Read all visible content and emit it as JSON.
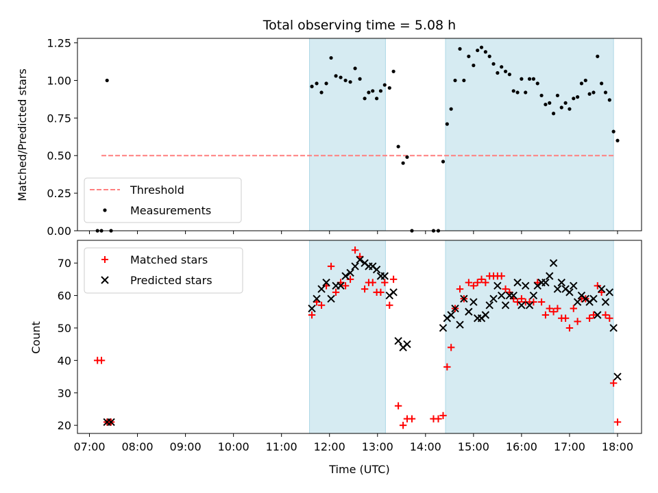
{
  "chart_data": [
    {
      "type": "scatter",
      "panel": "top",
      "title": "Total observing time = 5.08 h",
      "ylabel": "Matched/Predicted stars",
      "xlabel": "",
      "xlim": [
        "06:45",
        "18:30"
      ],
      "ylim": [
        0,
        1.28
      ],
      "yticks": [
        {
          "value": 0.0,
          "label": "0.00"
        },
        {
          "value": 0.25,
          "label": "0.25"
        },
        {
          "value": 0.5,
          "label": "0.50"
        },
        {
          "value": 0.75,
          "label": "0.75"
        },
        {
          "value": 1.0,
          "label": "1.00"
        },
        {
          "value": 1.25,
          "label": "1.25"
        }
      ],
      "observing_intervals": [
        [
          "11:35",
          "13:10"
        ],
        [
          "14:25",
          "17:55"
        ]
      ],
      "threshold": {
        "name": "Threshold",
        "y": 0.5,
        "x_range": [
          "07:15",
          "17:55"
        ],
        "color": "#ff7f7f"
      },
      "legend": {
        "position": "lower left",
        "entries": [
          "Threshold",
          "Measurements"
        ]
      },
      "series": [
        {
          "name": "Measurements",
          "marker": "dot",
          "color": "#000000",
          "points": [
            [
              "07:10",
              0.0
            ],
            [
              "07:15",
              0.0
            ],
            [
              "07:22",
              1.0
            ],
            [
              "07:27",
              0.0
            ],
            [
              "11:38",
              0.96
            ],
            [
              "11:44",
              0.98
            ],
            [
              "11:50",
              0.92
            ],
            [
              "11:56",
              0.98
            ],
            [
              "12:02",
              1.15
            ],
            [
              "12:08",
              1.03
            ],
            [
              "12:14",
              1.02
            ],
            [
              "12:20",
              1.0
            ],
            [
              "12:26",
              0.99
            ],
            [
              "12:32",
              1.08
            ],
            [
              "12:38",
              1.01
            ],
            [
              "12:44",
              0.88
            ],
            [
              "12:49",
              0.92
            ],
            [
              "12:54",
              0.93
            ],
            [
              "12:59",
              0.88
            ],
            [
              "13:04",
              0.93
            ],
            [
              "13:09",
              0.97
            ],
            [
              "13:15",
              0.95
            ],
            [
              "13:20",
              1.06
            ],
            [
              "13:26",
              0.56
            ],
            [
              "13:32",
              0.45
            ],
            [
              "13:37",
              0.49
            ],
            [
              "13:43",
              0.0
            ],
            [
              "14:10",
              0.0
            ],
            [
              "14:16",
              0.0
            ],
            [
              "14:22",
              0.46
            ],
            [
              "14:27",
              0.71
            ],
            [
              "14:32",
              0.81
            ],
            [
              "14:37",
              1.0
            ],
            [
              "14:43",
              1.21
            ],
            [
              "14:48",
              1.0
            ],
            [
              "14:54",
              1.16
            ],
            [
              "15:00",
              1.1
            ],
            [
              "15:05",
              1.2
            ],
            [
              "15:10",
              1.22
            ],
            [
              "15:15",
              1.19
            ],
            [
              "15:20",
              1.16
            ],
            [
              "15:25",
              1.11
            ],
            [
              "15:30",
              1.05
            ],
            [
              "15:35",
              1.09
            ],
            [
              "15:40",
              1.06
            ],
            [
              "15:45",
              1.04
            ],
            [
              "15:50",
              0.93
            ],
            [
              "15:55",
              0.92
            ],
            [
              "16:00",
              1.01
            ],
            [
              "16:05",
              0.92
            ],
            [
              "16:10",
              1.01
            ],
            [
              "16:15",
              1.01
            ],
            [
              "16:20",
              0.98
            ],
            [
              "16:25",
              0.9
            ],
            [
              "16:30",
              0.84
            ],
            [
              "16:35",
              0.85
            ],
            [
              "16:40",
              0.78
            ],
            [
              "16:45",
              0.9
            ],
            [
              "16:50",
              0.82
            ],
            [
              "16:55",
              0.85
            ],
            [
              "17:00",
              0.81
            ],
            [
              "17:05",
              0.88
            ],
            [
              "17:10",
              0.89
            ],
            [
              "17:15",
              0.98
            ],
            [
              "17:20",
              1.0
            ],
            [
              "17:25",
              0.91
            ],
            [
              "17:30",
              0.92
            ],
            [
              "17:35",
              1.16
            ],
            [
              "17:40",
              0.98
            ],
            [
              "17:45",
              0.92
            ],
            [
              "17:50",
              0.87
            ],
            [
              "17:55",
              0.66
            ],
            [
              "18:00",
              0.6
            ]
          ]
        }
      ]
    },
    {
      "type": "scatter",
      "panel": "bottom",
      "title": "",
      "ylabel": "Count",
      "xlabel": "Time (UTC)",
      "xlim": [
        "06:45",
        "18:30"
      ],
      "ylim": [
        17.5,
        77
      ],
      "yticks": [
        {
          "value": 20,
          "label": "20"
        },
        {
          "value": 30,
          "label": "30"
        },
        {
          "value": 40,
          "label": "40"
        },
        {
          "value": 50,
          "label": "50"
        },
        {
          "value": 60,
          "label": "60"
        },
        {
          "value": 70,
          "label": "70"
        }
      ],
      "xticks": [
        {
          "value": "07:00",
          "label": "07:00"
        },
        {
          "value": "08:00",
          "label": "08:00"
        },
        {
          "value": "09:00",
          "label": "09:00"
        },
        {
          "value": "10:00",
          "label": "10:00"
        },
        {
          "value": "11:00",
          "label": "11:00"
        },
        {
          "value": "12:00",
          "label": "12:00"
        },
        {
          "value": "13:00",
          "label": "13:00"
        },
        {
          "value": "14:00",
          "label": "14:00"
        },
        {
          "value": "15:00",
          "label": "15:00"
        },
        {
          "value": "16:00",
          "label": "16:00"
        },
        {
          "value": "17:00",
          "label": "17:00"
        },
        {
          "value": "18:00",
          "label": "18:00"
        }
      ],
      "observing_intervals": [
        [
          "11:35",
          "13:10"
        ],
        [
          "14:25",
          "17:55"
        ]
      ],
      "legend": {
        "position": "upper left",
        "entries": [
          "Matched stars",
          "Predicted stars"
        ]
      },
      "series": [
        {
          "name": "Matched stars",
          "marker": "plus",
          "color": "#ff0000",
          "points": [
            [
              "07:10",
              40
            ],
            [
              "07:15",
              40
            ],
            [
              "07:22",
              21
            ],
            [
              "07:27",
              21
            ],
            [
              "11:38",
              54
            ],
            [
              "11:44",
              58
            ],
            [
              "11:50",
              57
            ],
            [
              "11:56",
              63
            ],
            [
              "12:02",
              69
            ],
            [
              "12:08",
              61
            ],
            [
              "12:14",
              64
            ],
            [
              "12:20",
              63
            ],
            [
              "12:26",
              65
            ],
            [
              "12:32",
              74
            ],
            [
              "12:38",
              72
            ],
            [
              "12:44",
              62
            ],
            [
              "12:49",
              64
            ],
            [
              "12:54",
              64
            ],
            [
              "12:59",
              61
            ],
            [
              "13:04",
              61
            ],
            [
              "13:09",
              64
            ],
            [
              "13:15",
              57
            ],
            [
              "13:20",
              65
            ],
            [
              "13:26",
              26
            ],
            [
              "13:32",
              20
            ],
            [
              "13:37",
              22
            ],
            [
              "13:43",
              22
            ],
            [
              "14:10",
              22
            ],
            [
              "14:16",
              22
            ],
            [
              "14:22",
              23
            ],
            [
              "14:27",
              38
            ],
            [
              "14:32",
              44
            ],
            [
              "14:37",
              56
            ],
            [
              "14:43",
              62
            ],
            [
              "14:48",
              59
            ],
            [
              "14:54",
              64
            ],
            [
              "15:00",
              63
            ],
            [
              "15:05",
              64
            ],
            [
              "15:10",
              65
            ],
            [
              "15:15",
              64
            ],
            [
              "15:20",
              66
            ],
            [
              "15:25",
              66
            ],
            [
              "15:30",
              66
            ],
            [
              "15:35",
              66
            ],
            [
              "15:40",
              62
            ],
            [
              "15:45",
              61
            ],
            [
              "15:50",
              59
            ],
            [
              "15:55",
              58
            ],
            [
              "16:00",
              59
            ],
            [
              "16:05",
              58
            ],
            [
              "16:10",
              58
            ],
            [
              "16:15",
              58
            ],
            [
              "16:20",
              64
            ],
            [
              "16:25",
              58
            ],
            [
              "16:30",
              54
            ],
            [
              "16:35",
              56
            ],
            [
              "16:40",
              55
            ],
            [
              "16:45",
              56
            ],
            [
              "16:50",
              53
            ],
            [
              "16:55",
              53
            ],
            [
              "17:00",
              50
            ],
            [
              "17:05",
              56
            ],
            [
              "17:10",
              52
            ],
            [
              "17:15",
              59
            ],
            [
              "17:20",
              59
            ],
            [
              "17:25",
              53
            ],
            [
              "17:30",
              54
            ],
            [
              "17:35",
              63
            ],
            [
              "17:40",
              61
            ],
            [
              "17:45",
              54
            ],
            [
              "17:50",
              53
            ],
            [
              "17:55",
              33
            ],
            [
              "18:00",
              21
            ]
          ]
        },
        {
          "name": "Predicted stars",
          "marker": "x",
          "color": "#000000",
          "points": [
            [
              "07:22",
              21
            ],
            [
              "07:27",
              21
            ],
            [
              "11:38",
              56
            ],
            [
              "11:44",
              59
            ],
            [
              "11:50",
              62
            ],
            [
              "11:56",
              64
            ],
            [
              "12:02",
              59
            ],
            [
              "12:08",
              63
            ],
            [
              "12:14",
              63
            ],
            [
              "12:20",
              66
            ],
            [
              "12:26",
              67
            ],
            [
              "12:32",
              69
            ],
            [
              "12:38",
              71
            ],
            [
              "12:44",
              70
            ],
            [
              "12:49",
              69
            ],
            [
              "12:54",
              69
            ],
            [
              "12:59",
              68
            ],
            [
              "13:04",
              66
            ],
            [
              "13:09",
              66
            ],
            [
              "13:15",
              60
            ],
            [
              "13:20",
              61
            ],
            [
              "13:26",
              46
            ],
            [
              "13:32",
              44
            ],
            [
              "13:37",
              45
            ],
            [
              "14:22",
              50
            ],
            [
              "14:27",
              53
            ],
            [
              "14:32",
              54
            ],
            [
              "14:37",
              56
            ],
            [
              "14:43",
              51
            ],
            [
              "14:48",
              59
            ],
            [
              "14:54",
              55
            ],
            [
              "15:00",
              58
            ],
            [
              "15:05",
              53
            ],
            [
              "15:10",
              53
            ],
            [
              "15:15",
              54
            ],
            [
              "15:20",
              57
            ],
            [
              "15:25",
              59
            ],
            [
              "15:30",
              63
            ],
            [
              "15:35",
              60
            ],
            [
              "15:40",
              57
            ],
            [
              "15:45",
              60
            ],
            [
              "15:50",
              60
            ],
            [
              "15:55",
              64
            ],
            [
              "16:00",
              57
            ],
            [
              "16:05",
              63
            ],
            [
              "16:10",
              57
            ],
            [
              "16:15",
              60
            ],
            [
              "16:20",
              63
            ],
            [
              "16:25",
              64
            ],
            [
              "16:30",
              64
            ],
            [
              "16:35",
              66
            ],
            [
              "16:40",
              70
            ],
            [
              "16:45",
              62
            ],
            [
              "16:50",
              64
            ],
            [
              "16:55",
              62
            ],
            [
              "17:00",
              61
            ],
            [
              "17:05",
              63
            ],
            [
              "17:10",
              58
            ],
            [
              "17:15",
              60
            ],
            [
              "17:20",
              59
            ],
            [
              "17:25",
              58
            ],
            [
              "17:30",
              59
            ],
            [
              "17:35",
              54
            ],
            [
              "17:40",
              62
            ],
            [
              "17:45",
              58
            ],
            [
              "17:50",
              61
            ],
            [
              "17:55",
              50
            ],
            [
              "18:00",
              35
            ]
          ]
        }
      ]
    }
  ],
  "colors": {
    "observing_span": "#add8e6",
    "threshold": "#ff7f7f",
    "matched": "#ff0000",
    "predicted": "#000000"
  }
}
